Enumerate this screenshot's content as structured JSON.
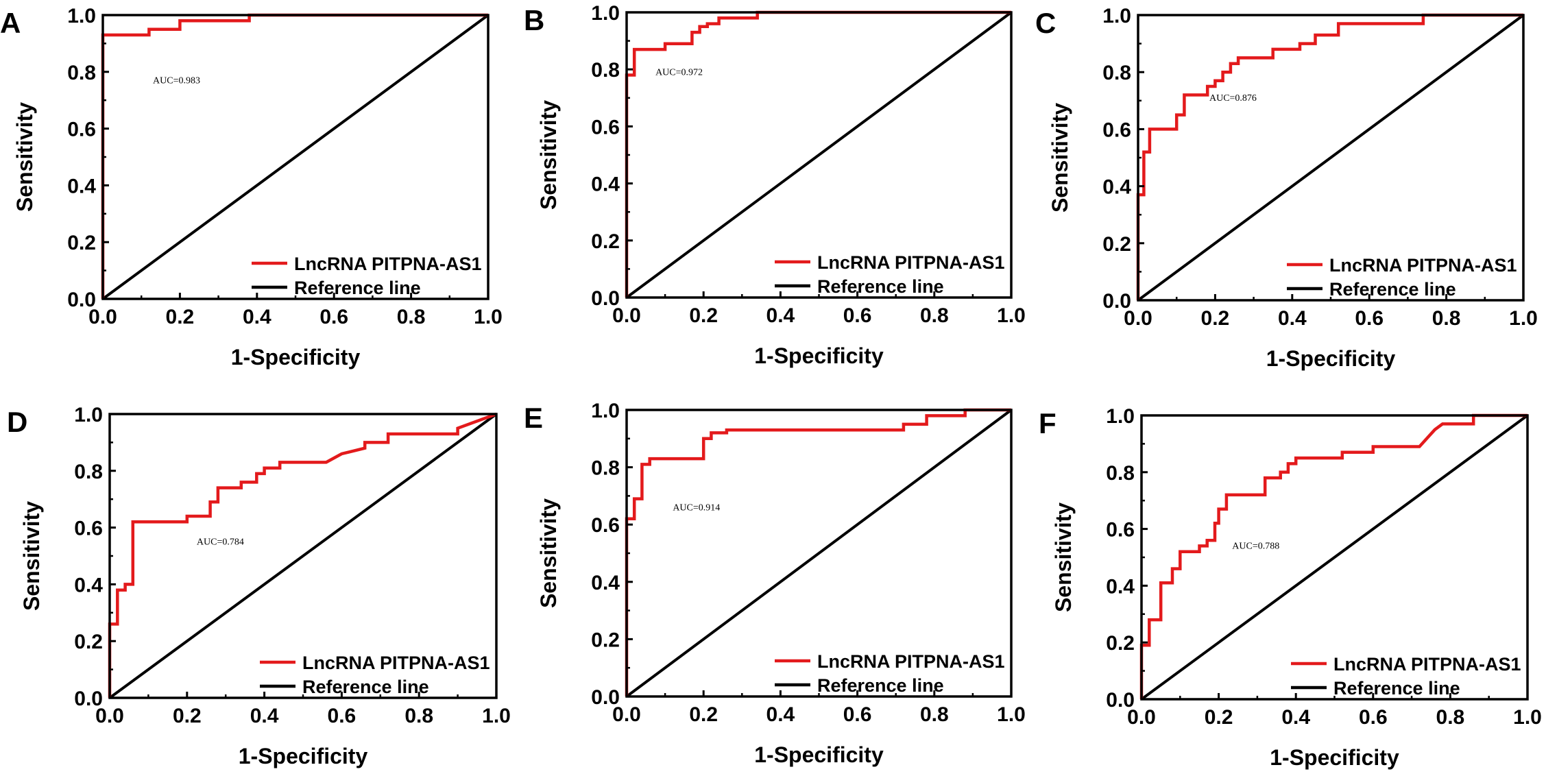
{
  "colors": {
    "roc_curve": "#e31a1c",
    "reference_line": "#000000",
    "axis": "#000000",
    "background": "#ffffff"
  },
  "chart_data": [
    {
      "type": "line",
      "panel": "A",
      "xlabel": "1-Specificity",
      "ylabel": "Sensitivity",
      "xlim": [
        0,
        1
      ],
      "ylim": [
        0,
        1
      ],
      "xticks": [
        "0.0",
        "0.2",
        "0.4",
        "0.6",
        "0.8",
        "1.0"
      ],
      "yticks": [
        "0.0",
        "0.2",
        "0.4",
        "0.6",
        "0.8",
        "1.0"
      ],
      "annotation": {
        "text": "AUC=0.983",
        "x": 0.13,
        "y": 0.76
      },
      "legend": {
        "position": "bottom-right",
        "entries": [
          "LncRNA PITPNA-AS1",
          "Reference line"
        ]
      },
      "series": [
        {
          "name": "LncRNA PITPNA-AS1",
          "x": [
            0,
            0,
            0.12,
            0.12,
            0.2,
            0.2,
            0.38,
            0.38,
            1.0
          ],
          "y": [
            0,
            0.93,
            0.93,
            0.95,
            0.95,
            0.98,
            0.98,
            1.0,
            1.0
          ]
        },
        {
          "name": "Reference line",
          "x": [
            0,
            1
          ],
          "y": [
            0,
            1
          ]
        }
      ]
    },
    {
      "type": "line",
      "panel": "B",
      "xlabel": "1-Specificity",
      "ylabel": "Sensitivity",
      "xlim": [
        0,
        1
      ],
      "ylim": [
        0,
        1
      ],
      "xticks": [
        "0.0",
        "0.2",
        "0.4",
        "0.6",
        "0.8",
        "1.0"
      ],
      "yticks": [
        "0.0",
        "0.2",
        "0.4",
        "0.6",
        "0.8",
        "1.0"
      ],
      "annotation": {
        "text": "AUC=0.972",
        "x": 0.075,
        "y": 0.78
      },
      "legend": {
        "position": "bottom-right",
        "entries": [
          "LncRNA PITPNA-AS1",
          "Reference line"
        ]
      },
      "series": [
        {
          "name": "LncRNA PITPNA-AS1",
          "x": [
            0,
            0,
            0.02,
            0.02,
            0.1,
            0.1,
            0.17,
            0.17,
            0.19,
            0.19,
            0.21,
            0.21,
            0.24,
            0.24,
            0.34,
            0.34,
            1.0
          ],
          "y": [
            0,
            0.78,
            0.78,
            0.87,
            0.87,
            0.89,
            0.89,
            0.93,
            0.93,
            0.95,
            0.95,
            0.96,
            0.96,
            0.98,
            0.98,
            1.0,
            1.0
          ]
        },
        {
          "name": "Reference line",
          "x": [
            0,
            1
          ],
          "y": [
            0,
            1
          ]
        }
      ]
    },
    {
      "type": "line",
      "panel": "C",
      "xlabel": "1-Specificity",
      "ylabel": "Sensitivity",
      "xlim": [
        0,
        1
      ],
      "ylim": [
        0,
        1
      ],
      "xticks": [
        "0.0",
        "0.2",
        "0.4",
        "0.6",
        "0.8",
        "1.0"
      ],
      "yticks": [
        "0.0",
        "0.2",
        "0.4",
        "0.6",
        "0.8",
        "1.0"
      ],
      "annotation": {
        "text": "AUC=0.876",
        "x": 0.185,
        "y": 0.7
      },
      "legend": {
        "position": "bottom-right",
        "entries": [
          "LncRNA PITPNA-AS1",
          "Reference line"
        ]
      },
      "series": [
        {
          "name": "LncRNA PITPNA-AS1",
          "x": [
            0,
            0,
            0.015,
            0.015,
            0.03,
            0.03,
            0.08,
            0.08,
            0.1,
            0.1,
            0.12,
            0.12,
            0.18,
            0.18,
            0.2,
            0.2,
            0.22,
            0.22,
            0.24,
            0.24,
            0.26,
            0.26,
            0.35,
            0.35,
            0.42,
            0.42,
            0.46,
            0.46,
            0.52,
            0.52,
            0.74,
            0.74,
            1.0
          ],
          "y": [
            0,
            0.37,
            0.37,
            0.52,
            0.52,
            0.6,
            0.6,
            0.6,
            0.6,
            0.65,
            0.65,
            0.72,
            0.72,
            0.75,
            0.75,
            0.77,
            0.77,
            0.8,
            0.8,
            0.83,
            0.83,
            0.85,
            0.85,
            0.88,
            0.88,
            0.9,
            0.9,
            0.93,
            0.93,
            0.97,
            0.97,
            1.0,
            1.0
          ]
        },
        {
          "name": "Reference line",
          "x": [
            0,
            1
          ],
          "y": [
            0,
            1
          ]
        }
      ]
    },
    {
      "type": "line",
      "panel": "D",
      "xlabel": "1-Specificity",
      "ylabel": "Sensitivity",
      "xlim": [
        0,
        1
      ],
      "ylim": [
        0,
        1
      ],
      "xticks": [
        "0.0",
        "0.2",
        "0.4",
        "0.6",
        "0.8",
        "1.0"
      ],
      "yticks": [
        "0.0",
        "0.2",
        "0.4",
        "0.6",
        "0.8",
        "1.0"
      ],
      "annotation": {
        "text": "AUC=0.784",
        "x": 0.225,
        "y": 0.54
      },
      "legend": {
        "position": "bottom-right",
        "entries": [
          "LncRNA PITPNA-AS1",
          "Reference line"
        ]
      },
      "series": [
        {
          "name": "LncRNA PITPNA-AS1",
          "x": [
            0,
            0,
            0.02,
            0.02,
            0.04,
            0.04,
            0.06,
            0.06,
            0.2,
            0.2,
            0.26,
            0.26,
            0.28,
            0.28,
            0.34,
            0.34,
            0.38,
            0.38,
            0.4,
            0.4,
            0.44,
            0.44,
            0.56,
            0.6,
            0.66,
            0.66,
            0.72,
            0.72,
            0.9,
            0.9,
            1.0
          ],
          "y": [
            0,
            0.26,
            0.26,
            0.38,
            0.38,
            0.4,
            0.4,
            0.62,
            0.62,
            0.64,
            0.64,
            0.69,
            0.69,
            0.74,
            0.74,
            0.76,
            0.76,
            0.79,
            0.79,
            0.81,
            0.81,
            0.83,
            0.83,
            0.86,
            0.88,
            0.9,
            0.9,
            0.93,
            0.93,
            0.95,
            1.0
          ]
        },
        {
          "name": "Reference line",
          "x": [
            0,
            1
          ],
          "y": [
            0,
            1
          ]
        }
      ]
    },
    {
      "type": "line",
      "panel": "E",
      "xlabel": "1-Specificity",
      "ylabel": "Sensitivity",
      "xlim": [
        0,
        1
      ],
      "ylim": [
        0,
        1
      ],
      "xticks": [
        "0.0",
        "0.2",
        "0.4",
        "0.6",
        "0.8",
        "1.0"
      ],
      "yticks": [
        "0.0",
        "0.2",
        "0.4",
        "0.6",
        "0.8",
        "1.0"
      ],
      "annotation": {
        "text": "AUC=0.914",
        "x": 0.12,
        "y": 0.65
      },
      "legend": {
        "position": "bottom-right",
        "entries": [
          "LncRNA PITPNA-AS1",
          "Reference line"
        ]
      },
      "series": [
        {
          "name": "LncRNA PITPNA-AS1",
          "x": [
            0,
            0,
            0.02,
            0.02,
            0.04,
            0.04,
            0.06,
            0.06,
            0.2,
            0.2,
            0.22,
            0.22,
            0.26,
            0.26,
            0.72,
            0.72,
            0.78,
            0.78,
            0.88,
            0.88,
            1.0
          ],
          "y": [
            0,
            0.62,
            0.62,
            0.69,
            0.69,
            0.81,
            0.81,
            0.83,
            0.83,
            0.9,
            0.9,
            0.92,
            0.92,
            0.93,
            0.93,
            0.95,
            0.95,
            0.98,
            0.98,
            1.0,
            1.0
          ]
        },
        {
          "name": "Reference line",
          "x": [
            0,
            1
          ],
          "y": [
            0,
            1
          ]
        }
      ]
    },
    {
      "type": "line",
      "panel": "F",
      "xlabel": "1-Specificity",
      "ylabel": "Sensitivity",
      "xlim": [
        0,
        1
      ],
      "ylim": [
        0,
        1
      ],
      "xticks": [
        "0.0",
        "0.2",
        "0.4",
        "0.6",
        "0.8",
        "1.0"
      ],
      "yticks": [
        "0.0",
        "0.2",
        "0.4",
        "0.6",
        "0.8",
        "1.0"
      ],
      "annotation": {
        "text": "AUC=0.788",
        "x": 0.235,
        "y": 0.53
      },
      "legend": {
        "position": "bottom-right",
        "entries": [
          "LncRNA PITPNA-AS1",
          "Reference line"
        ]
      },
      "series": [
        {
          "name": "LncRNA PITPNA-AS1",
          "x": [
            0,
            0,
            0.02,
            0.02,
            0.05,
            0.05,
            0.08,
            0.08,
            0.1,
            0.1,
            0.15,
            0.15,
            0.17,
            0.17,
            0.19,
            0.19,
            0.2,
            0.2,
            0.22,
            0.22,
            0.32,
            0.32,
            0.36,
            0.36,
            0.38,
            0.38,
            0.4,
            0.4,
            0.52,
            0.52,
            0.6,
            0.6,
            0.72,
            0.74,
            0.76,
            0.78,
            0.86,
            0.86,
            1.0
          ],
          "y": [
            0,
            0.19,
            0.19,
            0.28,
            0.28,
            0.41,
            0.41,
            0.46,
            0.46,
            0.52,
            0.52,
            0.54,
            0.54,
            0.56,
            0.56,
            0.62,
            0.62,
            0.67,
            0.67,
            0.72,
            0.72,
            0.78,
            0.78,
            0.8,
            0.8,
            0.83,
            0.83,
            0.85,
            0.85,
            0.87,
            0.87,
            0.89,
            0.89,
            0.92,
            0.95,
            0.97,
            0.97,
            1.0,
            1.0
          ]
        },
        {
          "name": "Reference line",
          "x": [
            0,
            1
          ],
          "y": [
            0,
            1
          ]
        }
      ]
    }
  ]
}
